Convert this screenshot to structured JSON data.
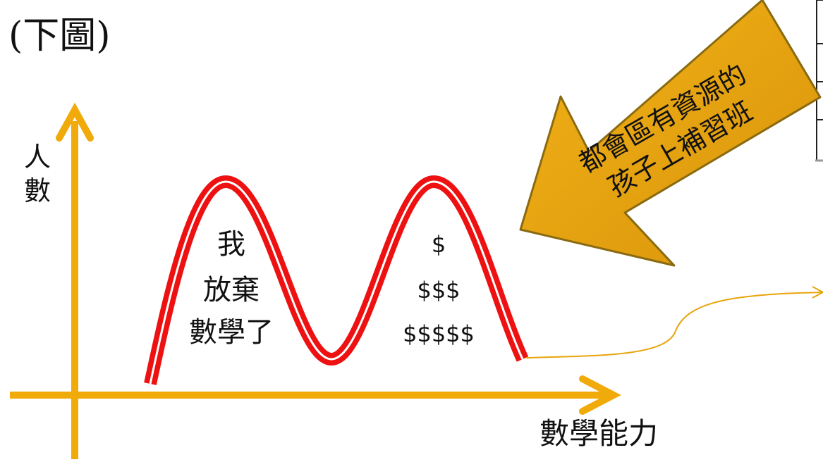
{
  "slide": {
    "title": "(下圖)"
  },
  "axes": {
    "y_label": [
      "人",
      "數"
    ],
    "x_label": "數學能力"
  },
  "left_peak": {
    "lines": [
      "我",
      "放棄",
      "數學了"
    ]
  },
  "right_peak": {
    "lines": [
      "$",
      "$$$",
      "$$$$$"
    ]
  },
  "callout_arrow": {
    "lines": [
      "都會區有資源的",
      "孩子上補習班"
    ]
  },
  "colors": {
    "axis": "#f0aa0a",
    "curve": "#ee1111",
    "arrow_fill": "#e8a40a",
    "arrow_stroke": "#8a6a10",
    "connector": "#e8a40a",
    "text": "#111111"
  }
}
